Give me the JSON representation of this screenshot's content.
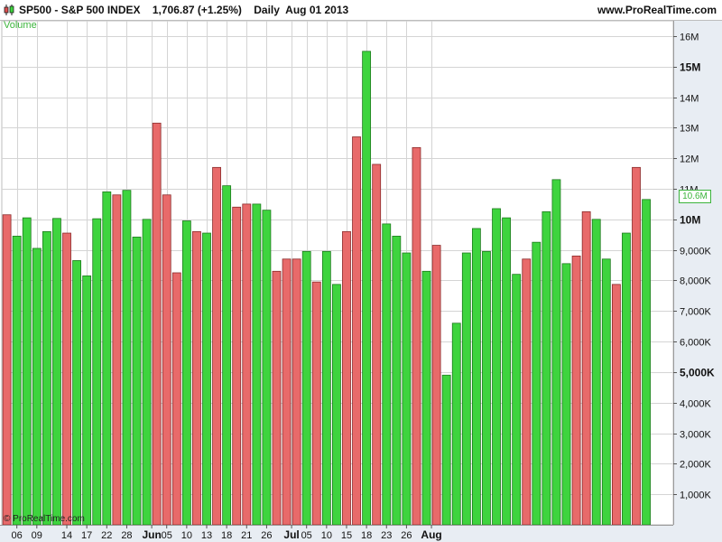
{
  "header": {
    "title": "SP500 - S&P 500 INDEX    1,706.87 (+1.25%)    Daily  Aug 01 2013",
    "site": "www.ProRealTime.com"
  },
  "indicator_label": "Volume",
  "copyright": "© ProRealTime.com",
  "last_value_label": "10.6M",
  "colors": {
    "up": "#3ed43e",
    "down": "#e86a6a",
    "up_border": "#1e7a1e",
    "down_border": "#8a2a2a",
    "accent": "#3cb43c",
    "grid": "#d4d4d4",
    "axis_bg": "#e8edf3"
  },
  "chart_data": {
    "type": "bar",
    "title": "SP500 - S&P 500 INDEX",
    "ylim": [
      0,
      16500000
    ],
    "yticks": [
      {
        "value": 1000000,
        "label": "1,000K",
        "bold": false
      },
      {
        "value": 2000000,
        "label": "2,000K",
        "bold": false
      },
      {
        "value": 3000000,
        "label": "3,000K",
        "bold": false
      },
      {
        "value": 4000000,
        "label": "4,000K",
        "bold": false
      },
      {
        "value": 5000000,
        "label": "5,000K",
        "bold": true
      },
      {
        "value": 6000000,
        "label": "6,000K",
        "bold": false
      },
      {
        "value": 7000000,
        "label": "7,000K",
        "bold": false
      },
      {
        "value": 8000000,
        "label": "8,000K",
        "bold": false
      },
      {
        "value": 9000000,
        "label": "9,000K",
        "bold": false
      },
      {
        "value": 10000000,
        "label": "10M",
        "bold": true
      },
      {
        "value": 11000000,
        "label": "11M",
        "bold": false
      },
      {
        "value": 12000000,
        "label": "12M",
        "bold": false
      },
      {
        "value": 13000000,
        "label": "13M",
        "bold": false
      },
      {
        "value": 14000000,
        "label": "14M",
        "bold": false
      },
      {
        "value": 15000000,
        "label": "15M",
        "bold": true
      },
      {
        "value": 16000000,
        "label": "16M",
        "bold": false
      }
    ],
    "xticks": [
      {
        "index": 1,
        "label": "06",
        "bold": false
      },
      {
        "index": 3,
        "label": "09",
        "bold": false
      },
      {
        "index": 6,
        "label": "14",
        "bold": false
      },
      {
        "index": 8,
        "label": "17",
        "bold": false
      },
      {
        "index": 10,
        "label": "22",
        "bold": false
      },
      {
        "index": 12,
        "label": "28",
        "bold": false
      },
      {
        "index": 14.5,
        "label": "Jun",
        "bold": true
      },
      {
        "index": 16,
        "label": "05",
        "bold": false
      },
      {
        "index": 18,
        "label": "10",
        "bold": false
      },
      {
        "index": 20,
        "label": "13",
        "bold": false
      },
      {
        "index": 22,
        "label": "18",
        "bold": false
      },
      {
        "index": 24,
        "label": "21",
        "bold": false
      },
      {
        "index": 26,
        "label": "26",
        "bold": false
      },
      {
        "index": 28.5,
        "label": "Jul",
        "bold": true
      },
      {
        "index": 30,
        "label": "05",
        "bold": false
      },
      {
        "index": 32,
        "label": "10",
        "bold": false
      },
      {
        "index": 34,
        "label": "15",
        "bold": false
      },
      {
        "index": 36,
        "label": "18",
        "bold": false
      },
      {
        "index": 38,
        "label": "23",
        "bold": false
      },
      {
        "index": 40,
        "label": "26",
        "bold": false
      },
      {
        "index": 42.5,
        "label": "Aug",
        "bold": true
      }
    ],
    "values": [
      10150000,
      9450000,
      10050000,
      9050000,
      9600000,
      10030000,
      9550000,
      8650000,
      8150000,
      10020000,
      10900000,
      10800000,
      10950000,
      9420000,
      10000000,
      13150000,
      10800000,
      8250000,
      9950000,
      9600000,
      9550000,
      11700000,
      11100000,
      10400000,
      10500000,
      10500000,
      10300000,
      8300000,
      8700000,
      8700000,
      8950000,
      7950000,
      8950000,
      7870000,
      9600000,
      12700000,
      15500000,
      11800000,
      9850000,
      9450000,
      8900000,
      12350000,
      8300000,
      9150000,
      4900000,
      6600000,
      8900000,
      9700000,
      8950000,
      10350000,
      10050000,
      8200000,
      8700000,
      9250000,
      10250000,
      11300000,
      8550000,
      8800000,
      10250000,
      10000000,
      8700000,
      7870000,
      9550000,
      11700000,
      10650000
    ],
    "directions": [
      "down",
      "up",
      "up",
      "up",
      "up",
      "up",
      "down",
      "up",
      "up",
      "up",
      "up",
      "down",
      "up",
      "up",
      "up",
      "down",
      "down",
      "down",
      "up",
      "down",
      "up",
      "down",
      "up",
      "down",
      "down",
      "up",
      "up",
      "down",
      "down",
      "down",
      "up",
      "down",
      "up",
      "up",
      "down",
      "down",
      "up",
      "down",
      "up",
      "up",
      "up",
      "down",
      "up",
      "down",
      "up",
      "up",
      "up",
      "up",
      "up",
      "up",
      "up",
      "up",
      "down",
      "up",
      "up",
      "up",
      "up",
      "down",
      "down",
      "up",
      "up",
      "down",
      "up",
      "down",
      "up"
    ]
  }
}
